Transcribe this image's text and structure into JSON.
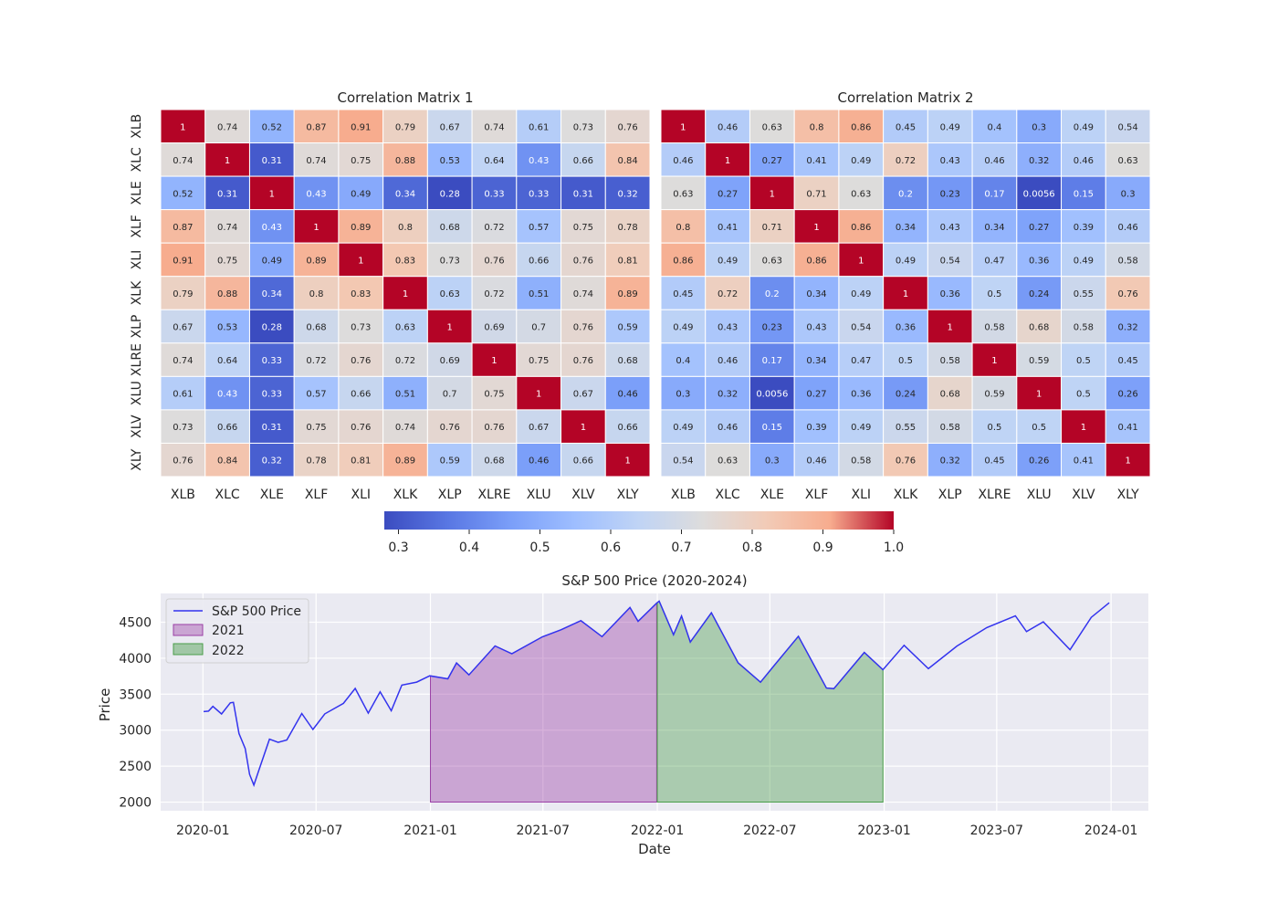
{
  "chart_data": [
    {
      "type": "heatmap",
      "title": "Correlation Matrix 1",
      "labels": [
        "XLB",
        "XLC",
        "XLE",
        "XLF",
        "XLI",
        "XLK",
        "XLP",
        "XLRE",
        "XLU",
        "XLV",
        "XLY"
      ],
      "colormap": "coolwarm",
      "values": [
        [
          1,
          0.74,
          0.52,
          0.87,
          0.91,
          0.79,
          0.67,
          0.74,
          0.61,
          0.73,
          0.76
        ],
        [
          0.74,
          1,
          0.31,
          0.74,
          0.75,
          0.88,
          0.53,
          0.64,
          0.43,
          0.66,
          0.84
        ],
        [
          0.52,
          0.31,
          1,
          0.43,
          0.49,
          0.34,
          0.28,
          0.33,
          0.33,
          0.31,
          0.32
        ],
        [
          0.87,
          0.74,
          0.43,
          1,
          0.89,
          0.8,
          0.68,
          0.72,
          0.57,
          0.75,
          0.78
        ],
        [
          0.91,
          0.75,
          0.49,
          0.89,
          1,
          0.83,
          0.73,
          0.76,
          0.66,
          0.76,
          0.81
        ],
        [
          0.79,
          0.88,
          0.34,
          0.8,
          0.83,
          1,
          0.63,
          0.72,
          0.51,
          0.74,
          0.89
        ],
        [
          0.67,
          0.53,
          0.28,
          0.68,
          0.73,
          0.63,
          1,
          0.69,
          0.7,
          0.76,
          0.59
        ],
        [
          0.74,
          0.64,
          0.33,
          0.72,
          0.76,
          0.72,
          0.69,
          1,
          0.75,
          0.76,
          0.68
        ],
        [
          0.61,
          0.43,
          0.33,
          0.57,
          0.66,
          0.51,
          0.7,
          0.75,
          1,
          0.67,
          0.46
        ],
        [
          0.73,
          0.66,
          0.31,
          0.75,
          0.76,
          0.74,
          0.76,
          0.76,
          0.67,
          1,
          0.66
        ],
        [
          0.76,
          0.84,
          0.32,
          0.78,
          0.81,
          0.89,
          0.59,
          0.68,
          0.46,
          0.66,
          1
        ]
      ],
      "color_range": [
        0.28,
        1
      ]
    },
    {
      "type": "heatmap",
      "title": "Correlation Matrix 2",
      "labels": [
        "XLB",
        "XLC",
        "XLE",
        "XLF",
        "XLI",
        "XLK",
        "XLP",
        "XLRE",
        "XLU",
        "XLV",
        "XLY"
      ],
      "colormap": "coolwarm",
      "values": [
        [
          1,
          0.46,
          0.63,
          0.8,
          0.86,
          0.45,
          0.49,
          0.4,
          0.3,
          0.49,
          0.54
        ],
        [
          0.46,
          1,
          0.27,
          0.41,
          0.49,
          0.72,
          0.43,
          0.46,
          0.32,
          0.46,
          0.63
        ],
        [
          0.63,
          0.27,
          1,
          0.71,
          0.63,
          0.2,
          0.23,
          0.17,
          0.0056,
          0.15,
          0.3
        ],
        [
          0.8,
          0.41,
          0.71,
          1,
          0.86,
          0.34,
          0.43,
          0.34,
          0.27,
          0.39,
          0.46
        ],
        [
          0.86,
          0.49,
          0.63,
          0.86,
          1,
          0.49,
          0.54,
          0.47,
          0.36,
          0.49,
          0.58
        ],
        [
          0.45,
          0.72,
          0.2,
          0.34,
          0.49,
          1,
          0.36,
          0.5,
          0.24,
          0.55,
          0.76
        ],
        [
          0.49,
          0.43,
          0.23,
          0.43,
          0.54,
          0.36,
          1,
          0.58,
          0.68,
          0.58,
          0.32
        ],
        [
          0.4,
          0.46,
          0.17,
          0.34,
          0.47,
          0.5,
          0.58,
          1,
          0.59,
          0.5,
          0.45
        ],
        [
          0.3,
          0.32,
          0.0056,
          0.27,
          0.36,
          0.24,
          0.68,
          0.59,
          1,
          0.5,
          0.26
        ],
        [
          0.49,
          0.46,
          0.15,
          0.39,
          0.49,
          0.55,
          0.58,
          0.5,
          0.5,
          1,
          0.41
        ],
        [
          0.54,
          0.63,
          0.3,
          0.46,
          0.58,
          0.76,
          0.32,
          0.45,
          0.26,
          0.41,
          1
        ]
      ],
      "color_range": [
        0.0056,
        1
      ]
    },
    {
      "type": "colorbar",
      "ticks": [
        "0.3",
        "0.4",
        "0.5",
        "0.6",
        "0.7",
        "0.8",
        "0.9",
        "1.0"
      ],
      "range": [
        0.28,
        1.0
      ]
    },
    {
      "type": "line",
      "title": "S&P 500 Price (2020-2024)",
      "xlabel": "Date",
      "ylabel": "Price",
      "x_ticks": [
        "2020-01",
        "2020-07",
        "2021-01",
        "2021-07",
        "2022-01",
        "2022-07",
        "2023-01",
        "2023-07",
        "2024-01"
      ],
      "y_ticks": [
        "2000",
        "2500",
        "3000",
        "3500",
        "4000",
        "4500"
      ],
      "ylim": [
        1880,
        4900
      ],
      "xlim": [
        "2019-10-25",
        "2024-03-01"
      ],
      "grid": true,
      "legend_position": "top-left",
      "legend": [
        "S&P 500 Price",
        "2021",
        "2022"
      ],
      "series": [
        {
          "name": "S&P 500 Price",
          "color": "#3333ee",
          "points": [
            [
              "2020-01-02",
              3258
            ],
            [
              "2020-01-10",
              3265
            ],
            [
              "2020-01-17",
              3330
            ],
            [
              "2020-01-31",
              3225
            ],
            [
              "2020-02-14",
              3380
            ],
            [
              "2020-02-19",
              3386
            ],
            [
              "2020-02-28",
              2954
            ],
            [
              "2020-03-09",
              2746
            ],
            [
              "2020-03-16",
              2386
            ],
            [
              "2020-03-23",
              2237
            ],
            [
              "2020-04-01",
              2470
            ],
            [
              "2020-04-17",
              2875
            ],
            [
              "2020-05-01",
              2830
            ],
            [
              "2020-05-15",
              2863
            ],
            [
              "2020-06-08",
              3232
            ],
            [
              "2020-06-26",
              3009
            ],
            [
              "2020-07-15",
              3226
            ],
            [
              "2020-08-14",
              3372
            ],
            [
              "2020-09-02",
              3580
            ],
            [
              "2020-09-23",
              3237
            ],
            [
              "2020-10-12",
              3534
            ],
            [
              "2020-10-30",
              3270
            ],
            [
              "2020-11-16",
              3626
            ],
            [
              "2020-12-10",
              3668
            ],
            [
              "2020-12-31",
              3756
            ],
            [
              "2021-01-29",
              3714
            ],
            [
              "2021-02-12",
              3934
            ],
            [
              "2021-03-04",
              3768
            ],
            [
              "2021-04-15",
              4170
            ],
            [
              "2021-05-12",
              4063
            ],
            [
              "2021-06-30",
              4297
            ],
            [
              "2021-07-30",
              4395
            ],
            [
              "2021-08-31",
              4522
            ],
            [
              "2021-10-04",
              4300
            ],
            [
              "2021-11-18",
              4704
            ],
            [
              "2021-12-01",
              4513
            ],
            [
              "2021-12-31",
              4766
            ],
            [
              "2022-01-04",
              4793
            ],
            [
              "2022-01-27",
              4326
            ],
            [
              "2022-02-09",
              4587
            ],
            [
              "2022-02-23",
              4225
            ],
            [
              "2022-03-29",
              4631
            ],
            [
              "2022-05-11",
              3935
            ],
            [
              "2022-06-16",
              3666
            ],
            [
              "2022-07-08",
              3899
            ],
            [
              "2022-08-16",
              4305
            ],
            [
              "2022-09-30",
              3585
            ],
            [
              "2022-10-12",
              3577
            ],
            [
              "2022-11-30",
              4080
            ],
            [
              "2022-12-30",
              3839
            ],
            [
              "2023-02-02",
              4179
            ],
            [
              "2023-03-13",
              3855
            ],
            [
              "2023-04-28",
              4169
            ],
            [
              "2023-06-15",
              4425
            ],
            [
              "2023-07-31",
              4589
            ],
            [
              "2023-08-18",
              4370
            ],
            [
              "2023-09-14",
              4505
            ],
            [
              "2023-10-27",
              4117
            ],
            [
              "2023-11-30",
              4567
            ],
            [
              "2023-12-29",
              4770
            ]
          ]
        }
      ],
      "fills": [
        {
          "name": "2021",
          "color": "#9b3fa6",
          "from": "2021-01-01",
          "to": "2021-12-31",
          "base": 2000
        },
        {
          "name": "2022",
          "color": "#4a9e4a",
          "from": "2022-01-01",
          "to": "2022-12-30",
          "base": 2000
        }
      ]
    }
  ]
}
